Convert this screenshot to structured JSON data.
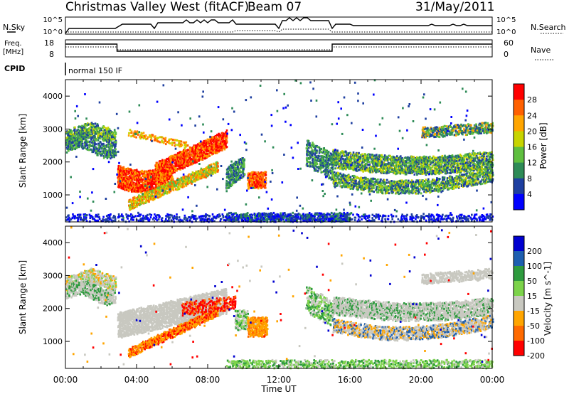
{
  "header": {
    "title": "Christmas Valley West (fitACF)",
    "beam": "Beam 07",
    "date": "31/May/2011"
  },
  "top_panels": {
    "nsky_label": "N.Sky",
    "nsky_ticks": [
      "10^5",
      "10^0"
    ],
    "nsearch_ticks": [
      "10^5",
      "10^0"
    ],
    "nsearch_label": "N.Search",
    "freq_label_1": "Freq.",
    "freq_label_2": "[MHz]",
    "freq_ticks": [
      "18",
      "8"
    ],
    "nave_ticks": [
      "60",
      "0"
    ],
    "nave_label": "Nave",
    "cpid_label": "CPID",
    "cpid_value": "normal 150 IF"
  },
  "chart_data": [
    {
      "type": "heatmap",
      "name": "power",
      "ylabel": "Slant Range [km]",
      "xlabel": "Time UT",
      "xticks": [
        "00:00",
        "04:00",
        "08:00",
        "12:00",
        "16:00",
        "20:00",
        "00:00"
      ],
      "yticks": [
        "1000",
        "2000",
        "3000",
        "4000"
      ],
      "xlim_hours": [
        0,
        24
      ],
      "ylim_km": [
        180,
        4500
      ],
      "colorbar_label": "Power [dB]",
      "colorbar_ticks": [
        "4",
        "8",
        "12",
        "16",
        "20",
        "24",
        "28"
      ],
      "colors": [
        "#0000ff",
        "#1e3fa0",
        "#2e8b57",
        "#5fbf3f",
        "#c8d400",
        "#ffa500",
        "#ff6000",
        "#ff0000"
      ]
    },
    {
      "type": "heatmap",
      "name": "velocity",
      "ylabel": "Slant Range [km]",
      "xlabel": "Time UT",
      "xticks": [
        "00:00",
        "04:00",
        "08:00",
        "12:00",
        "16:00",
        "20:00",
        "00:00"
      ],
      "yticks": [
        "1000",
        "2000",
        "3000",
        "4000"
      ],
      "xlim_hours": [
        0,
        24
      ],
      "ylim_km": [
        180,
        4500
      ],
      "colorbar_label": "Velocity [m s^-1]",
      "colorbar_ticks": [
        "200",
        "100",
        "50",
        "15",
        "-15",
        "-50",
        "-100",
        "-200"
      ],
      "colors": [
        "#0000d0",
        "#1e5fb0",
        "#2e9b3e",
        "#7cd34a",
        "#c8c8c0",
        "#ffa500",
        "#ff6a00",
        "#ff0000"
      ]
    }
  ],
  "footer": {
    "xaxis_label": "Time UT"
  }
}
